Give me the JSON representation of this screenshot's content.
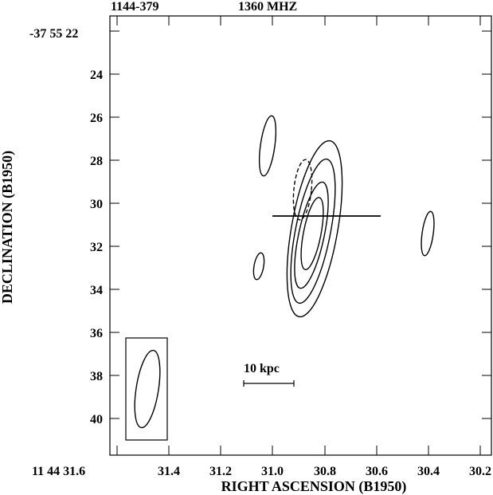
{
  "header": {
    "source_name": "1144-379",
    "frequency": "1360 MHZ",
    "dec_origin": "-37 55 22",
    "ra_origin": "11 44 31.6"
  },
  "axes": {
    "xlabel": "RIGHT ASCENSION (B1950)",
    "ylabel": "DECLINATION (B1950)",
    "x_ticks": [
      "31.4",
      "31.2",
      "31.0",
      "30.8",
      "30.6",
      "30.4",
      "30.2"
    ],
    "y_ticks": [
      "24",
      "26",
      "28",
      "30",
      "32",
      "34",
      "36",
      "38",
      "40"
    ]
  },
  "scale_bar": {
    "label": "10 kpc"
  }
}
